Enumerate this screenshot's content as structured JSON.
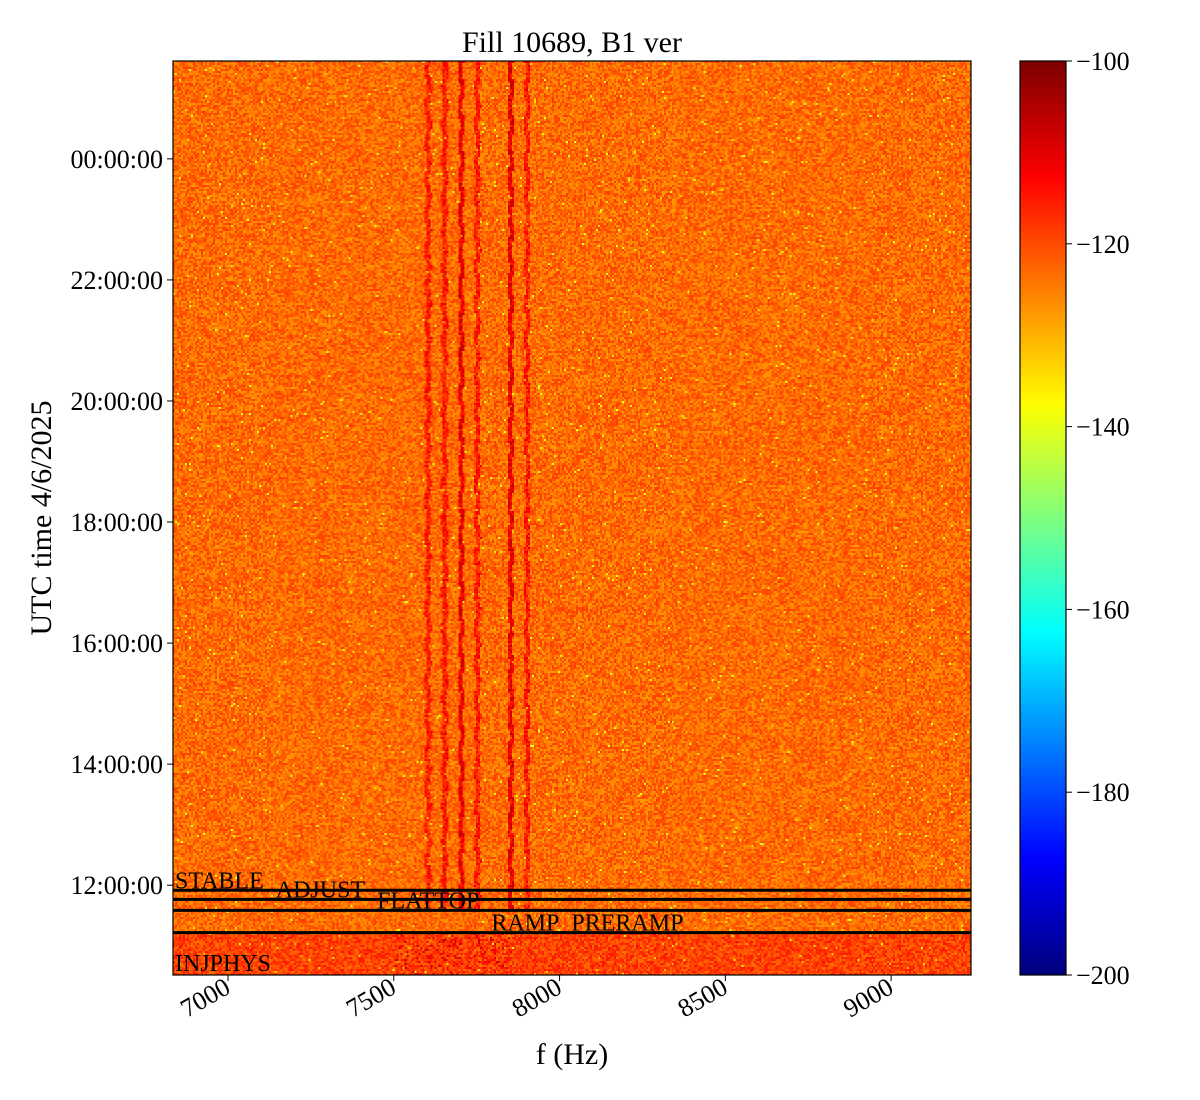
{
  "chart_data": {
    "type": "heatmap",
    "title": "Fill 10689, B1 ver",
    "xlabel": "f (Hz)",
    "ylabel": "UTC time 4/6/2025",
    "xlim": [
      6834,
      9241
    ],
    "x_ticks": [
      7000,
      7500,
      8000,
      8500,
      9000
    ],
    "x_tick_labels": [
      "7000",
      "7500",
      "8000",
      "8500",
      "9000"
    ],
    "ylim": [
      "10:31:00",
      "01:37:00"
    ],
    "y_ticks": [
      "12:00:00",
      "14:00:00",
      "16:00:00",
      "18:00:00",
      "20:00:00",
      "22:00:00",
      "00:00:00"
    ],
    "colormap": "jet",
    "colorbar": {
      "range": [
        -200,
        -100
      ],
      "ticks": [
        -100,
        -120,
        -140,
        -160,
        -180,
        -200
      ],
      "tick_labels": [
        "−100",
        "−120",
        "−140",
        "−160",
        "−180",
        "−200"
      ]
    },
    "background_level": -123,
    "spectral_lines_hz": [
      7600,
      7650,
      7700,
      7750,
      7850,
      7900
    ],
    "beam_modes": [
      {
        "label": "INJPHYS",
        "time": "10:31:00",
        "line": false
      },
      {
        "label": "PRERAMP",
        "time": "11:13:00",
        "line": true
      },
      {
        "label": "RAMP",
        "time": "11:13:00",
        "line": false
      },
      {
        "label": "FLATTOP",
        "time": "11:35:00",
        "line": true
      },
      {
        "label": "ADJUST",
        "time": "11:46:00",
        "line": true
      },
      {
        "label": "STABLE",
        "time": "11:55:00",
        "line": true
      }
    ]
  }
}
